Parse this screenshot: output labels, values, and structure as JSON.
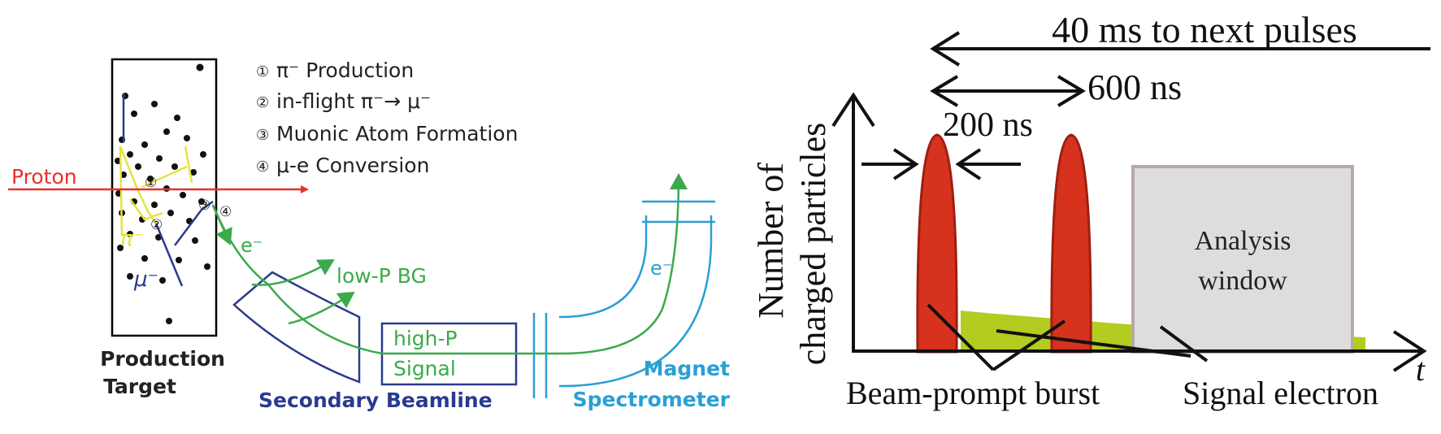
{
  "colors": {
    "proton": "#e8312a",
    "target_frame": "#000000",
    "pion": "#e8e23c",
    "muon": "#2b3a8f",
    "electron": "#3aaa4a",
    "beamline": "#2b3a8f",
    "spectrometer": "#2a9fd6",
    "burst": "#d7321e",
    "burst_edge": "#9e1f12",
    "signal": "#b3cc1f",
    "window_fill": "#dddddd",
    "window_edge": "#b8a8aa"
  },
  "left_panel": {
    "steps": [
      {
        "num": "①",
        "text": "π⁻ Production"
      },
      {
        "num": "②",
        "text": "in-flight π⁻→ μ⁻"
      },
      {
        "num": "③",
        "text": "Muonic Atom Formation"
      },
      {
        "num": "④",
        "text": "μ-e Conversion"
      }
    ],
    "proton_label": "Proton",
    "pion_label": "π⁻",
    "muon_label": "μ⁻",
    "electron_label_1": "e⁻",
    "electron_label_2": "e⁻",
    "marker_1": "①",
    "marker_2": "②",
    "marker_3": "③",
    "marker_4": "④",
    "target_label_line1": "Production",
    "target_label_line2": "Target",
    "lowp_label": "low-P BG",
    "highp_label_line1": "high-P",
    "highp_label_line2": "Signal",
    "beamline_label": "Secondary Beamline",
    "magnet_label_line1": "Magnet",
    "magnet_label_line2": "Spectrometer"
  },
  "right_panel": {
    "top_label": "40 ms to next pulses",
    "mid_label": "600 ns",
    "width_label": "200 ns",
    "ylabel_line1": "Number of",
    "ylabel_line2": "charged particles",
    "xlabel": "t",
    "window_line1": "Analysis",
    "window_line2": "window",
    "burst_label": "Beam-prompt burst",
    "signal_label": "Signal electron"
  }
}
